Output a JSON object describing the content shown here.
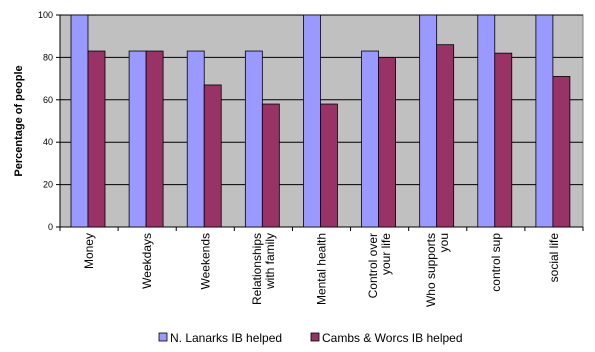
{
  "chart_data": {
    "type": "bar",
    "title": "",
    "xlabel": "",
    "ylabel": "Percentage of people",
    "ylim": [
      0,
      100
    ],
    "yticks": [
      0,
      20,
      40,
      60,
      80,
      100
    ],
    "grid": true,
    "legend_position": "bottom",
    "categories": [
      [
        "Money"
      ],
      [
        "Weekdays"
      ],
      [
        "Weekends"
      ],
      [
        "Relationships",
        "with family"
      ],
      [
        "Mental health"
      ],
      [
        "Control over",
        "your life"
      ],
      [
        "Who supports",
        "you"
      ],
      [
        "control sup"
      ],
      [
        "social life"
      ]
    ],
    "series": [
      {
        "name": "N. Lanarks IB helped",
        "color": "#9999ff",
        "values": [
          100,
          83,
          83,
          83,
          100,
          83,
          100,
          100,
          100
        ]
      },
      {
        "name": "Cambs & Worcs IB helped",
        "color": "#993366",
        "values": [
          83,
          83,
          67,
          58,
          58,
          80,
          86,
          82,
          71
        ]
      }
    ],
    "plot_background": "#c0c0c0"
  }
}
